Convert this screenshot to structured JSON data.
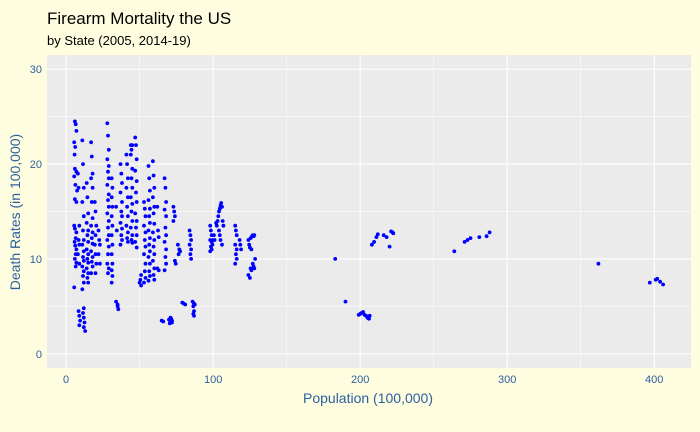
{
  "chart_data": {
    "type": "scatter",
    "title": "Firearm Mortality the US",
    "subtitle": "by State (2005, 2014-19)",
    "xlabel": "Population (100,000)",
    "ylabel": "Death Rates (in 100,000)",
    "xlim": [
      -13,
      425
    ],
    "ylim": [
      -1.5,
      31.5
    ],
    "x_ticks": [
      0,
      100,
      200,
      300,
      400
    ],
    "y_ticks": [
      0,
      10,
      20,
      30
    ],
    "grid": true,
    "legend": "none",
    "colors": {
      "background": "#fffde0",
      "panel": "#ebebeb",
      "grid": "#ffffff",
      "point": "#0000ff",
      "axis_text": "#2c5fa0"
    },
    "points": [
      [
        6,
        24.5
      ],
      [
        6.5,
        24.2
      ],
      [
        7,
        23.5
      ],
      [
        5.5,
        22.3
      ],
      [
        6.2,
        21.8
      ],
      [
        5.8,
        21
      ],
      [
        6,
        19.5
      ],
      [
        7,
        19.2
      ],
      [
        5.5,
        18.7
      ],
      [
        6.3,
        17.8
      ],
      [
        7.5,
        17.2
      ],
      [
        6,
        16.3
      ],
      [
        7,
        16
      ],
      [
        5.5,
        13.5
      ],
      [
        6,
        13.2
      ],
      [
        7,
        12.8
      ],
      [
        6.5,
        12.2
      ],
      [
        5.8,
        11.8
      ],
      [
        6.2,
        11.4
      ],
      [
        7,
        11
      ],
      [
        6.5,
        10.5
      ],
      [
        6,
        10
      ],
      [
        7,
        9.6
      ],
      [
        6.5,
        9.2
      ],
      [
        5.5,
        7
      ],
      [
        8,
        19
      ],
      [
        8.5,
        17.5
      ],
      [
        9,
        13.5
      ],
      [
        8.5,
        12
      ],
      [
        9,
        11.5
      ],
      [
        8,
        10.5
      ],
      [
        9,
        9.5
      ],
      [
        8.5,
        4.5
      ],
      [
        9,
        4
      ],
      [
        9.5,
        3.5
      ],
      [
        9,
        3
      ],
      [
        11,
        22.5
      ],
      [
        11.5,
        20
      ],
      [
        12,
        17.5
      ],
      [
        11,
        16
      ],
      [
        12,
        14.5
      ],
      [
        11.5,
        13
      ],
      [
        12,
        12
      ],
      [
        11,
        11.5
      ],
      [
        12,
        10.8
      ],
      [
        11.5,
        10.2
      ],
      [
        12,
        9.8
      ],
      [
        11,
        9.2
      ],
      [
        12,
        8.7
      ],
      [
        11.5,
        8.2
      ],
      [
        12,
        7.5
      ],
      [
        11,
        6.8
      ],
      [
        12,
        4.8
      ],
      [
        11.5,
        4.3
      ],
      [
        12,
        3.8
      ],
      [
        12.5,
        3.3
      ],
      [
        12,
        2.8
      ],
      [
        13,
        2.4
      ],
      [
        14,
        18
      ],
      [
        14.5,
        16.5
      ],
      [
        15,
        14.8
      ],
      [
        14,
        13.8
      ],
      [
        15,
        13
      ],
      [
        14.5,
        12.5
      ],
      [
        15,
        11.8
      ],
      [
        14,
        11
      ],
      [
        15,
        10.5
      ],
      [
        14.5,
        10
      ],
      [
        15,
        9.6
      ],
      [
        14,
        9
      ],
      [
        15,
        8.5
      ],
      [
        14.5,
        8
      ],
      [
        15,
        7.5
      ],
      [
        17,
        22.3
      ],
      [
        17.5,
        20.8
      ],
      [
        18,
        19
      ],
      [
        17,
        18.5
      ],
      [
        18,
        17.5
      ],
      [
        17.5,
        16
      ],
      [
        18,
        14.3
      ],
      [
        17,
        13.5
      ],
      [
        18,
        12.8
      ],
      [
        17.5,
        12.2
      ],
      [
        18,
        11.6
      ],
      [
        17,
        10.8
      ],
      [
        18,
        10.2
      ],
      [
        17.5,
        9.7
      ],
      [
        18,
        9.2
      ],
      [
        17,
        8.5
      ],
      [
        19.5,
        16
      ],
      [
        20,
        15
      ],
      [
        20.5,
        13.5
      ],
      [
        20,
        12.5
      ],
      [
        19.5,
        11.5
      ],
      [
        20,
        10.5
      ],
      [
        20.5,
        9.5
      ],
      [
        20,
        8.5
      ],
      [
        22,
        13
      ],
      [
        22.5,
        12
      ],
      [
        23,
        11.5
      ],
      [
        22,
        10.5
      ],
      [
        23,
        9.5
      ],
      [
        28,
        24.3
      ],
      [
        28.5,
        23
      ],
      [
        29,
        21.5
      ],
      [
        28,
        20.5
      ],
      [
        29,
        19.8
      ],
      [
        28.5,
        19.2
      ],
      [
        29,
        18.5
      ],
      [
        28,
        17.8
      ],
      [
        29,
        16.8
      ],
      [
        28.5,
        16.2
      ],
      [
        29,
        15.5
      ],
      [
        28,
        14.8
      ],
      [
        29,
        14
      ],
      [
        28.5,
        13.3
      ],
      [
        29,
        12.5
      ],
      [
        28,
        12
      ],
      [
        29,
        11.3
      ],
      [
        28.5,
        10.5
      ],
      [
        28,
        9.5
      ],
      [
        29,
        9
      ],
      [
        28.5,
        8.5
      ],
      [
        31,
        18.5
      ],
      [
        31.5,
        17.5
      ],
      [
        31,
        16.5
      ],
      [
        31.5,
        15.5
      ],
      [
        31,
        14.5
      ],
      [
        31.5,
        13.5
      ],
      [
        31,
        12.5
      ],
      [
        31.5,
        11.5
      ],
      [
        31,
        10.5
      ],
      [
        31.5,
        9.5
      ],
      [
        31,
        8.8
      ],
      [
        31.5,
        8.2
      ],
      [
        31,
        7.5
      ],
      [
        34,
        15.5
      ],
      [
        34.5,
        13
      ],
      [
        34,
        5.5
      ],
      [
        35,
        5
      ],
      [
        35.5,
        4.7
      ],
      [
        35,
        5.2
      ],
      [
        37,
        20
      ],
      [
        37.5,
        19
      ],
      [
        38,
        18
      ],
      [
        37,
        17
      ],
      [
        38,
        16
      ],
      [
        37.5,
        15
      ],
      [
        38,
        14.5
      ],
      [
        37,
        13.8
      ],
      [
        38,
        13.2
      ],
      [
        37.5,
        12.5
      ],
      [
        38,
        12
      ],
      [
        37,
        11.5
      ],
      [
        41,
        21
      ],
      [
        41.5,
        20
      ],
      [
        42,
        18.5
      ],
      [
        41,
        17.5
      ],
      [
        42,
        16.5
      ],
      [
        41.5,
        15.5
      ],
      [
        42,
        14.5
      ],
      [
        41,
        13.5
      ],
      [
        42,
        12.8
      ],
      [
        41.5,
        12.2
      ],
      [
        42,
        11.8
      ],
      [
        44,
        22
      ],
      [
        44.5,
        21.5
      ],
      [
        45,
        22
      ],
      [
        44,
        21
      ],
      [
        45,
        19.5
      ],
      [
        44.5,
        18.5
      ],
      [
        45,
        17.5
      ],
      [
        44,
        16.5
      ],
      [
        45,
        15.8
      ],
      [
        44.5,
        15
      ],
      [
        45,
        14
      ],
      [
        44,
        13.3
      ],
      [
        45,
        12.5
      ],
      [
        44.5,
        12
      ],
      [
        45,
        11.7
      ],
      [
        47,
        22.8
      ],
      [
        47.5,
        22
      ],
      [
        48,
        20.5
      ],
      [
        47,
        19.3
      ],
      [
        48,
        18.2
      ],
      [
        47.5,
        17
      ],
      [
        48,
        16
      ],
      [
        47,
        14.8
      ],
      [
        48,
        14
      ],
      [
        47.5,
        13.3
      ],
      [
        48,
        12.5
      ],
      [
        47,
        11.8
      ],
      [
        48,
        11.2
      ],
      [
        50,
        7.5
      ],
      [
        51,
        7.2
      ],
      [
        50.5,
        7.8
      ],
      [
        51,
        8.3
      ],
      [
        53,
        16
      ],
      [
        53.5,
        15.3
      ],
      [
        54,
        14.5
      ],
      [
        53,
        13.5
      ],
      [
        54,
        12.8
      ],
      [
        53.5,
        12
      ],
      [
        54,
        11.3
      ],
      [
        53,
        10.5
      ],
      [
        54,
        9.5
      ],
      [
        53.5,
        8.7
      ],
      [
        54,
        8
      ],
      [
        53,
        7.5
      ],
      [
        56,
        19.8
      ],
      [
        56.5,
        18.5
      ],
      [
        57,
        17.2
      ],
      [
        56,
        16.2
      ],
      [
        57,
        15.3
      ],
      [
        56.5,
        14.5
      ],
      [
        57,
        13.8
      ],
      [
        56,
        13
      ],
      [
        57,
        12.2
      ],
      [
        56.5,
        11.5
      ],
      [
        57,
        10.8
      ],
      [
        56,
        10.2
      ],
      [
        57,
        9.5
      ],
      [
        56.5,
        8.7
      ],
      [
        57,
        8.2
      ],
      [
        56,
        7.7
      ],
      [
        59,
        20.3
      ],
      [
        59.5,
        18.8
      ],
      [
        60,
        17.5
      ],
      [
        59,
        16.5
      ],
      [
        60,
        15.5
      ],
      [
        59.5,
        14.8
      ],
      [
        60,
        13.7
      ],
      [
        59,
        12.8
      ],
      [
        60,
        12
      ],
      [
        59.5,
        11.3
      ],
      [
        60,
        10.5
      ],
      [
        59,
        9.8
      ],
      [
        60,
        9
      ],
      [
        59.5,
        8.3
      ],
      [
        60,
        7.8
      ],
      [
        62,
        15.5
      ],
      [
        62.5,
        13
      ],
      [
        63,
        12.3
      ],
      [
        62,
        9
      ],
      [
        63,
        8.8
      ],
      [
        65,
        3.5
      ],
      [
        66,
        3.4
      ],
      [
        67,
        18.5
      ],
      [
        67.5,
        17.5
      ],
      [
        68,
        16
      ],
      [
        67,
        15.2
      ],
      [
        68,
        14.5
      ],
      [
        67.5,
        13.3
      ],
      [
        68,
        12.5
      ],
      [
        67,
        11.8
      ],
      [
        68,
        11
      ],
      [
        67.5,
        10.2
      ],
      [
        68,
        9.5
      ],
      [
        67,
        8.8
      ],
      [
        70,
        3.6
      ],
      [
        71,
        3.4
      ],
      [
        70.5,
        3.2
      ],
      [
        71.5,
        3.7
      ],
      [
        72,
        3.5
      ],
      [
        71,
        3.8
      ],
      [
        72,
        3.3
      ],
      [
        73,
        15.5
      ],
      [
        73.5,
        15
      ],
      [
        74,
        14.5
      ],
      [
        73,
        14
      ],
      [
        74,
        9.8
      ],
      [
        74.5,
        9.5
      ],
      [
        76,
        11.5
      ],
      [
        76.5,
        10.5
      ],
      [
        77,
        11
      ],
      [
        77.5,
        10.8
      ],
      [
        80,
        5.3
      ],
      [
        81,
        5.2
      ],
      [
        79,
        5.4
      ],
      [
        84,
        13
      ],
      [
        84.5,
        12.5
      ],
      [
        85,
        12
      ],
      [
        84,
        11.5
      ],
      [
        85,
        11
      ],
      [
        84.5,
        10.5
      ],
      [
        85,
        10
      ],
      [
        86,
        5.5
      ],
      [
        87,
        5.3
      ],
      [
        86.5,
        5
      ],
      [
        87.5,
        5.2
      ],
      [
        87,
        4.5
      ],
      [
        86.5,
        4.2
      ],
      [
        87,
        4
      ],
      [
        98,
        13.5
      ],
      [
        98.5,
        13
      ],
      [
        99,
        12.5
      ],
      [
        98,
        12
      ],
      [
        99,
        11.8
      ],
      [
        98.5,
        11.3
      ],
      [
        99,
        11
      ],
      [
        98,
        10.8
      ],
      [
        99.5,
        11.5
      ],
      [
        100,
        12
      ],
      [
        100.5,
        12.5
      ],
      [
        101,
        12
      ],
      [
        102,
        13.8
      ],
      [
        102.5,
        13.5
      ],
      [
        103,
        14
      ],
      [
        103.5,
        14.5
      ],
      [
        104,
        15
      ],
      [
        104.5,
        15.3
      ],
      [
        105,
        15.6
      ],
      [
        105.5,
        15.9
      ],
      [
        106,
        15.5
      ],
      [
        106.5,
        14
      ],
      [
        107,
        13.5
      ],
      [
        104,
        13
      ],
      [
        104.5,
        12.5
      ],
      [
        105,
        12
      ],
      [
        106,
        11.5
      ],
      [
        115,
        13.5
      ],
      [
        115.5,
        13
      ],
      [
        116,
        12.5
      ],
      [
        115,
        11.5
      ],
      [
        116,
        11
      ],
      [
        115.5,
        10.5
      ],
      [
        116,
        10
      ],
      [
        115,
        9.5
      ],
      [
        118,
        12
      ],
      [
        118.5,
        11.5
      ],
      [
        119,
        11
      ],
      [
        124,
        12
      ],
      [
        124.5,
        11.5
      ],
      [
        125,
        11.2
      ],
      [
        126,
        11
      ],
      [
        125.5,
        12.2
      ],
      [
        126.5,
        12.4
      ],
      [
        127,
        12.5
      ],
      [
        127.5,
        12.4
      ],
      [
        128,
        12.5
      ],
      [
        124,
        8.3
      ],
      [
        125,
        8
      ],
      [
        125.5,
        9
      ],
      [
        126,
        8.8
      ],
      [
        127,
        9.5
      ],
      [
        127.5,
        9.2
      ],
      [
        128,
        9
      ],
      [
        128.5,
        10
      ],
      [
        183,
        10
      ],
      [
        190,
        5.5
      ],
      [
        199,
        4.1
      ],
      [
        200,
        4.2
      ],
      [
        201,
        4.3
      ],
      [
        202,
        4.4
      ],
      [
        203,
        4.1
      ],
      [
        204,
        4
      ],
      [
        205,
        3.8
      ],
      [
        206,
        3.7
      ],
      [
        206.5,
        4
      ],
      [
        208,
        11.5
      ],
      [
        209.5,
        11.8
      ],
      [
        211,
        12.3
      ],
      [
        212,
        12.6
      ],
      [
        216,
        12.5
      ],
      [
        218,
        12.3
      ],
      [
        220,
        11.3
      ],
      [
        221,
        12.9
      ],
      [
        222,
        12.8
      ],
      [
        222.5,
        12.7
      ],
      [
        264,
        10.8
      ],
      [
        271,
        11.8
      ],
      [
        273,
        12
      ],
      [
        275,
        12.2
      ],
      [
        281,
        12.3
      ],
      [
        286,
        12.4
      ],
      [
        288,
        12.8
      ],
      [
        362,
        9.5
      ],
      [
        397,
        7.5
      ],
      [
        401,
        7.8
      ],
      [
        402,
        7.9
      ],
      [
        404,
        7.6
      ],
      [
        406,
        7.3
      ]
    ]
  }
}
